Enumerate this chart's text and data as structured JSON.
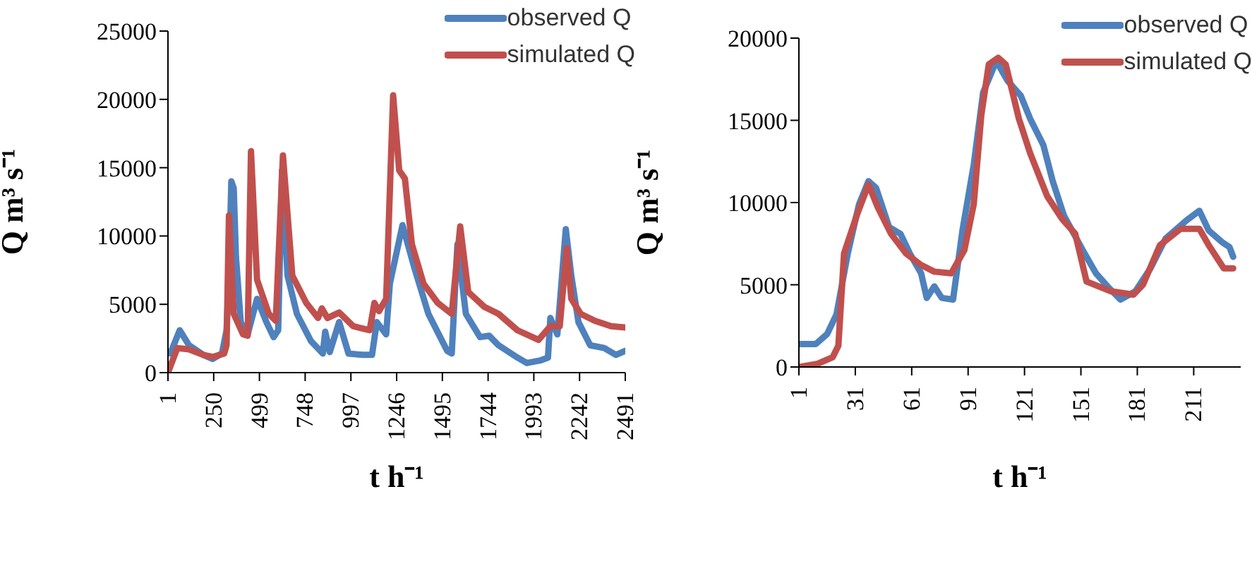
{
  "chart_data": [
    {
      "type": "line",
      "ylabel": "Q m³ s⁻¹",
      "xlabel": "t h⁻¹",
      "xlim": [
        1,
        2491
      ],
      "xticks": [
        1,
        250,
        499,
        748,
        997,
        1246,
        1495,
        1744,
        1993,
        2242,
        2491
      ],
      "ylim": [
        0,
        25000
      ],
      "yticks": [
        0,
        5000,
        10000,
        15000,
        20000,
        25000
      ],
      "grid": false,
      "legend": "top right",
      "marker": "none",
      "line_style": "solid",
      "series": [
        {
          "name": "observed Q",
          "color": "#4f81bd",
          "x": [
            14,
            65,
            116,
            193,
            244,
            295,
            320,
            333,
            346,
            359,
            371,
            397,
            435,
            453,
            486,
            537,
            576,
            601,
            622,
            652,
            703,
            780,
            844,
            857,
            882,
            933,
            984,
            1061,
            1112,
            1138,
            1189,
            1209,
            1240,
            1278,
            1342,
            1419,
            1521,
            1546,
            1577,
            1623,
            1700,
            1750,
            1801,
            1904,
            1955,
            2031,
            2070,
            2083,
            2121,
            2167,
            2197,
            2236,
            2300,
            2376,
            2440,
            2491
          ],
          "values": [
            1400,
            3100,
            2000,
            1300,
            1000,
            1400,
            3100,
            7100,
            14000,
            13500,
            8500,
            3700,
            2800,
            null,
            5400,
            3700,
            2600,
            3100,
            14800,
            7100,
            4300,
            2300,
            1400,
            3000,
            1500,
            3700,
            1400,
            1300,
            1300,
            3700,
            2800,
            6500,
            null,
            10800,
            7700,
            4300,
            1600,
            1400,
            9400,
            4300,
            2600,
            2700,
            2000,
            1100,
            700,
            900,
            1100,
            4000,
            2800,
            10500,
            7100,
            3700,
            2000,
            1800,
            1300,
            1600
          ]
        },
        {
          "name": "simulated Q",
          "color": "#c0504d",
          "x": [
            1,
            52,
            116,
            193,
            244,
            307,
            320,
            333,
            359,
            410,
            435,
            453,
            486,
            550,
            588,
            627,
            678,
            754,
            818,
            839,
            869,
            933,
            1010,
            1099,
            1125,
            1150,
            1189,
            1227,
            1260,
            1291,
            1329,
            1393,
            1470,
            1546,
            1592,
            1636,
            1725,
            1801,
            1904,
            2019,
            2083,
            2134,
            2172,
            2197,
            2248,
            2325,
            2414,
            2491
          ],
          "values": [
            0,
            1800,
            1700,
            1300,
            1150,
            1400,
            2000,
            11500,
            4300,
            2800,
            2700,
            16200,
            6800,
            4300,
            3800,
            15900,
            7100,
            5100,
            4000,
            4700,
            4000,
            4400,
            3400,
            3100,
            5100,
            4500,
            5400,
            20300,
            14800,
            14200,
            9400,
            6500,
            5100,
            4300,
            10700,
            5900,
            4800,
            4300,
            3100,
            2400,
            3400,
            3400,
            9100,
            5400,
            4300,
            3800,
            3400,
            3300
          ]
        }
      ]
    },
    {
      "type": "line",
      "ylabel": "Q m³ s⁻¹",
      "xlabel": "t h⁻¹",
      "xlim": [
        1,
        236
      ],
      "xticks": [
        1,
        31,
        61,
        91,
        121,
        151,
        181,
        211
      ],
      "ylim": [
        0,
        20000
      ],
      "yticks": [
        0,
        5000,
        10000,
        15000,
        20000
      ],
      "grid": false,
      "legend": "top right",
      "marker": "none",
      "line_style": "solid",
      "series": [
        {
          "name": "observed Q",
          "color": "#4f81bd",
          "x": [
            1,
            10,
            16,
            21,
            27,
            33,
            38,
            42,
            49,
            55,
            60,
            66,
            69,
            73,
            77,
            83,
            88,
            94,
            99,
            106,
            112,
            119,
            124,
            131,
            136,
            142,
            152,
            159,
            166,
            172,
            180,
            188,
            196,
            207,
            214,
            219,
            226,
            230,
            232
          ],
          "values": [
            1400,
            1400,
            2000,
            3200,
            6900,
            9900,
            11300,
            10900,
            8500,
            8100,
            6900,
            5700,
            4200,
            4900,
            4200,
            4100,
            8300,
            12300,
            16700,
            18600,
            17400,
            16500,
            15100,
            13500,
            11300,
            9200,
            7100,
            5700,
            4800,
            4100,
            4600,
            6000,
            7800,
            8900,
            9500,
            8300,
            7600,
            7300,
            6700
          ]
        },
        {
          "name": "simulated Q",
          "color": "#c0504d",
          "x": [
            1,
            11,
            19,
            22,
            25,
            32,
            38,
            43,
            50,
            58,
            66,
            73,
            82,
            89,
            94,
            98,
            102,
            107,
            111,
            118,
            124,
            133,
            141,
            148,
            154,
            167,
            179,
            184,
            193,
            204,
            214,
            219,
            227,
            232
          ],
          "values": [
            0,
            200,
            600,
            1300,
            6900,
            9300,
            11100,
            9700,
            8100,
            6900,
            6200,
            5800,
            5700,
            7100,
            9900,
            15300,
            18400,
            18800,
            18400,
            15100,
            13000,
            10400,
            9000,
            8100,
            5200,
            4600,
            4400,
            5000,
            7400,
            8400,
            8400,
            7400,
            6000,
            6000
          ]
        }
      ]
    }
  ]
}
